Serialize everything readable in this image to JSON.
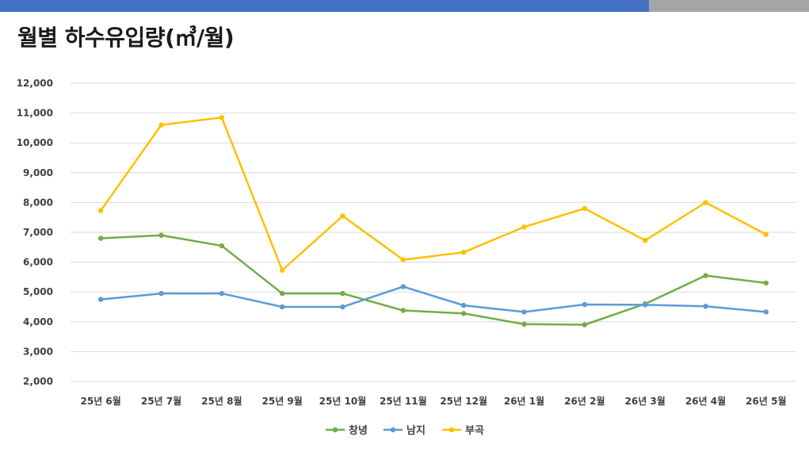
{
  "title": "월별 하수유입량(㎥/월)",
  "colors": {
    "topbar_blue": "#4472C4",
    "topbar_gray": "#A5A5A5",
    "grid": "#D9D9D9"
  },
  "chart_data": {
    "type": "line",
    "categories": [
      "25년 6월",
      "25년 7월",
      "25년 8월",
      "25년 9월",
      "25년 10월",
      "25년 11월",
      "25년 12월",
      "26년 1월",
      "26년 2월",
      "26년 3월",
      "26년 4월",
      "26년 5월"
    ],
    "ylim": [
      2000,
      12000
    ],
    "yticks": [
      2000,
      3000,
      4000,
      5000,
      6000,
      7000,
      8000,
      9000,
      10000,
      11000,
      12000
    ],
    "ytick_labels": [
      "2,000",
      "3,000",
      "4,000",
      "5,000",
      "6,000",
      "7,000",
      "8,000",
      "9,000",
      "10,000",
      "11,000",
      "12,000"
    ],
    "grid": true,
    "legend_position": "bottom",
    "series": [
      {
        "name": "창녕",
        "color": "#70AD47",
        "values": [
          6800,
          6900,
          6550,
          4950,
          4950,
          4380,
          4280,
          3920,
          3900,
          4600,
          5550,
          5300
        ]
      },
      {
        "name": "남지",
        "color": "#5B9BD5",
        "values": [
          4750,
          4950,
          4950,
          4500,
          4500,
          5180,
          4550,
          4330,
          4580,
          4570,
          4520,
          4330
        ]
      },
      {
        "name": "부곡",
        "color": "#FFC000",
        "values": [
          7730,
          10600,
          10850,
          5730,
          7550,
          6080,
          6330,
          7180,
          7800,
          6730,
          8000,
          6930
        ]
      }
    ]
  }
}
